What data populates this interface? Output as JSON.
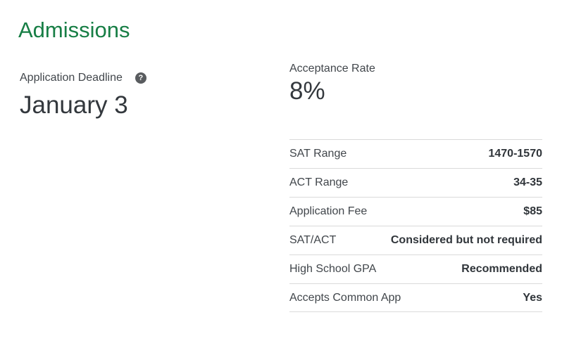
{
  "section": {
    "title": "Admissions"
  },
  "deadline": {
    "label": "Application Deadline",
    "value": "January 3",
    "help_icon": "question-mark",
    "help_glyph": "?"
  },
  "acceptance": {
    "label": "Acceptance Rate",
    "value": "8%"
  },
  "facts": {
    "rows": [
      {
        "label": "SAT Range",
        "value": "1470-1570"
      },
      {
        "label": "ACT Range",
        "value": "34-35"
      },
      {
        "label": "Application Fee",
        "value": "$85"
      },
      {
        "label": "SAT/ACT",
        "value": "Considered but not required"
      },
      {
        "label": "High School GPA",
        "value": "Recommended"
      },
      {
        "label": "Accepts Common App",
        "value": "Yes"
      }
    ]
  },
  "colors": {
    "heading_green": "#177e45",
    "text_dark": "#33383d",
    "label_gray": "#41464b",
    "value_dark": "#30353a",
    "divider_gray": "#dadada",
    "help_icon_gray": "#595c5f"
  }
}
